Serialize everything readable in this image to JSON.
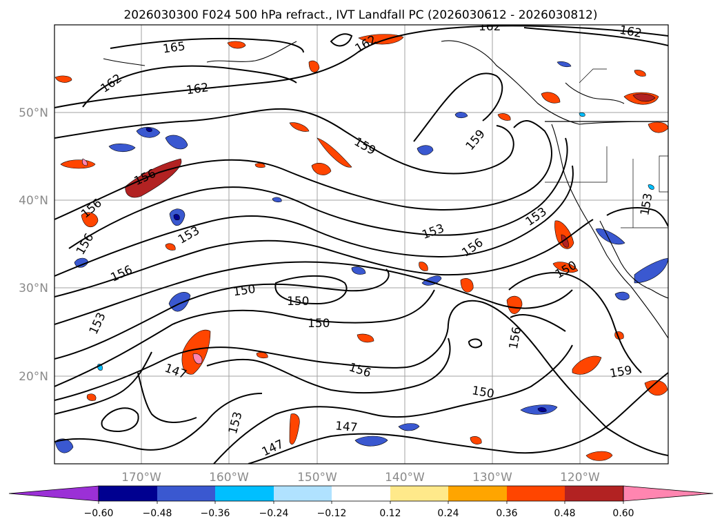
{
  "title": "2026030300 F024 500 hPa refract., IVT Landfall PC (2026030612 - 2026030812)",
  "map": {
    "lat_labels": [
      "50°N",
      "40°N",
      "30°N",
      "20°N"
    ],
    "lon_labels": [
      "170°W",
      "160°W",
      "150°W",
      "140°W",
      "130°W",
      "120°W"
    ],
    "contour_labels": [
      "165",
      "162",
      "162",
      "162",
      "162",
      "162",
      "159",
      "159",
      "156",
      "156",
      "156",
      "156",
      "156",
      "156",
      "156",
      "153",
      "153",
      "153",
      "153",
      "153",
      "153",
      "150",
      "150",
      "150",
      "150",
      "150",
      "147",
      "147",
      "147",
      "159"
    ]
  },
  "colorbar": {
    "tick_labels": [
      "−0.60",
      "−0.48",
      "−0.36",
      "−0.24",
      "−0.12",
      "0.12",
      "0.24",
      "0.36",
      "0.48",
      "0.60"
    ],
    "colors": [
      "#9b30d6",
      "#000090",
      "#3a58d0",
      "#00bfff",
      "#b0e2ff",
      "#ffffff",
      "#ffe98a",
      "#ffa500",
      "#ff4500",
      "#b22222",
      "#ff85b0"
    ]
  },
  "colors": {
    "contour": "#000000",
    "coast": "#000000",
    "grid": "#a0a0a0",
    "positive_fill": "#ff4500",
    "negative_fill": "#3a58d0"
  }
}
